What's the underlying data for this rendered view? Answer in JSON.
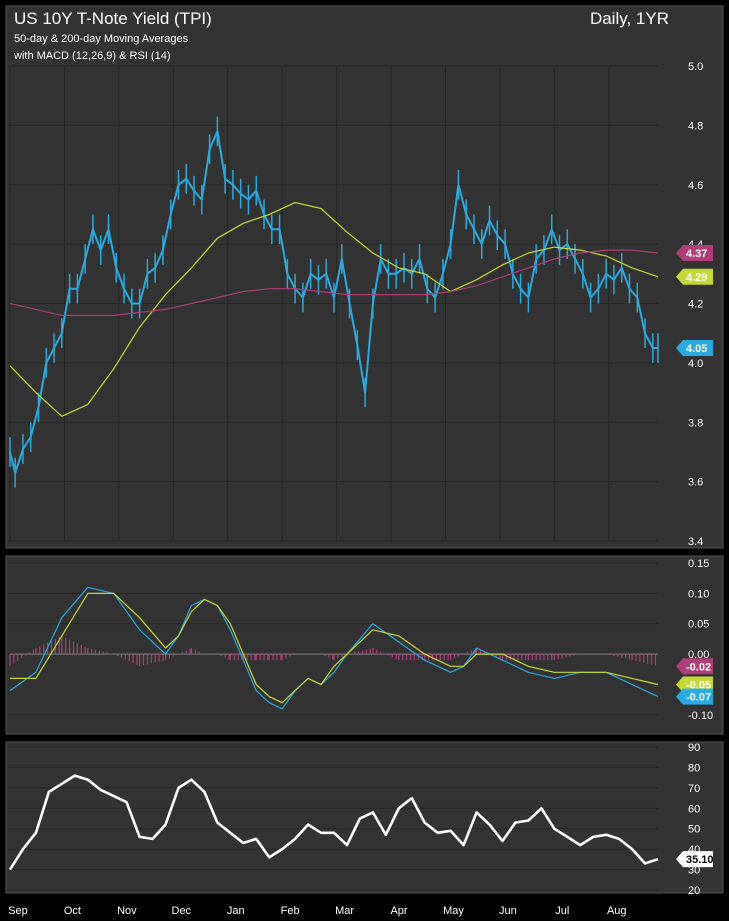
{
  "header": {
    "title": "US 10Y T-Note Yield (TPI)",
    "subtitle1": "50-day & 200-day Moving Averages",
    "subtitle2": "with MACD (12,26,9) & RSI (14)",
    "timeframe": "Daily, 1YR"
  },
  "colors": {
    "background": "#333333",
    "border": "#000000",
    "grid": "#262626",
    "price": "#29aae1",
    "ma50": "#c5d936",
    "ma200": "#b03e7a",
    "macd": "#29aae1",
    "signal": "#c5d936",
    "histogram": "#b03e7a",
    "rsi": "#ffffff",
    "text": "#ffffff"
  },
  "chart_data": [
    {
      "type": "line",
      "panel": "price",
      "ylim": [
        3.4,
        5.0
      ],
      "y_ticks": [
        "3.4",
        "3.6",
        "3.8",
        "4.0",
        "4.2",
        "4.4",
        "4.6",
        "4.8",
        "5.0"
      ],
      "x_ticks": [
        "Sep",
        "Oct",
        "Nov",
        "Dec",
        "Jan",
        "Feb",
        "Mar",
        "Apr",
        "May",
        "Jun",
        "Jul",
        "Aug"
      ],
      "series": [
        {
          "key": "price",
          "x": [
            0,
            2,
            5,
            8,
            11,
            14,
            17,
            20,
            23,
            26,
            29,
            32,
            35,
            38,
            41,
            44,
            47,
            50,
            53,
            56,
            59,
            62,
            65,
            68,
            71,
            74,
            77,
            80,
            83,
            86,
            89,
            92,
            95,
            98,
            101,
            104,
            107,
            110,
            113,
            116,
            119,
            122,
            125,
            128,
            131,
            134,
            137,
            140,
            143,
            146,
            149,
            152,
            155,
            158,
            161,
            164,
            167,
            170,
            173,
            176,
            179,
            182,
            185,
            188,
            191,
            194,
            197,
            200,
            203,
            206,
            209,
            212,
            215,
            218,
            221,
            224,
            227,
            230,
            233,
            236,
            239,
            242,
            245,
            248,
            250
          ],
          "values": [
            3.7,
            3.63,
            3.71,
            3.75,
            3.85,
            4.0,
            4.05,
            4.1,
            4.25,
            4.25,
            4.35,
            4.45,
            4.38,
            4.45,
            4.32,
            4.25,
            4.2,
            4.2,
            4.3,
            4.32,
            4.38,
            4.5,
            4.6,
            4.62,
            4.58,
            4.55,
            4.72,
            4.78,
            4.62,
            4.6,
            4.57,
            4.55,
            4.58,
            4.5,
            4.45,
            4.45,
            4.3,
            4.25,
            4.22,
            4.3,
            4.28,
            4.3,
            4.22,
            4.35,
            4.2,
            4.06,
            3.9,
            4.2,
            4.35,
            4.3,
            4.3,
            4.32,
            4.3,
            4.35,
            4.25,
            4.22,
            4.3,
            4.4,
            4.6,
            4.5,
            4.45,
            4.4,
            4.48,
            4.43,
            4.4,
            4.3,
            4.25,
            4.22,
            4.35,
            4.38,
            4.45,
            4.38,
            4.4,
            4.35,
            4.3,
            4.22,
            4.25,
            4.3,
            4.28,
            4.32,
            4.25,
            4.22,
            4.1,
            4.05,
            4.05
          ]
        },
        {
          "key": "ma50",
          "name": "4.29",
          "x": [
            0,
            10,
            20,
            30,
            40,
            50,
            60,
            70,
            80,
            90,
            100,
            110,
            120,
            130,
            140,
            150,
            160,
            170,
            180,
            190,
            200,
            210,
            220,
            230,
            240,
            250
          ],
          "values": [
            3.99,
            3.9,
            3.82,
            3.86,
            3.98,
            4.12,
            4.23,
            4.32,
            4.42,
            4.47,
            4.5,
            4.54,
            4.52,
            4.44,
            4.37,
            4.32,
            4.3,
            4.24,
            4.28,
            4.33,
            4.37,
            4.39,
            4.38,
            4.36,
            4.32,
            4.29
          ]
        },
        {
          "key": "ma200",
          "name": "4.37",
          "x": [
            0,
            10,
            20,
            30,
            40,
            50,
            60,
            70,
            80,
            90,
            100,
            110,
            120,
            130,
            140,
            150,
            160,
            170,
            180,
            190,
            200,
            210,
            220,
            230,
            240,
            250
          ],
          "values": [
            4.2,
            4.18,
            4.16,
            4.16,
            4.16,
            4.17,
            4.18,
            4.2,
            4.22,
            4.24,
            4.25,
            4.25,
            4.24,
            4.23,
            4.23,
            4.23,
            4.23,
            4.24,
            4.26,
            4.29,
            4.32,
            4.35,
            4.37,
            4.38,
            4.38,
            4.37
          ]
        }
      ],
      "last_labels": [
        "4.37",
        "4.29",
        "4.05"
      ]
    },
    {
      "type": "line",
      "panel": "macd",
      "ylim": [
        -0.12,
        0.15
      ],
      "y_ticks": [
        "0.15",
        "0.10",
        "0.05",
        "0.00",
        "-0.10"
      ],
      "series": [
        {
          "key": "macd",
          "x": [
            0,
            10,
            20,
            30,
            40,
            50,
            60,
            65,
            70,
            75,
            80,
            85,
            90,
            95,
            100,
            105,
            110,
            115,
            120,
            125,
            130,
            140,
            150,
            160,
            170,
            175,
            180,
            190,
            200,
            210,
            220,
            230,
            240,
            250
          ],
          "values": [
            -0.06,
            -0.03,
            0.06,
            0.11,
            0.1,
            0.04,
            0.0,
            0.03,
            0.08,
            0.09,
            0.08,
            0.04,
            -0.01,
            -0.06,
            -0.08,
            -0.09,
            -0.06,
            -0.04,
            -0.05,
            -0.03,
            0.0,
            0.05,
            0.02,
            -0.01,
            -0.03,
            -0.02,
            0.01,
            -0.01,
            -0.03,
            -0.04,
            -0.03,
            -0.03,
            -0.05,
            -0.07
          ]
        },
        {
          "key": "signal",
          "x": [
            0,
            10,
            20,
            30,
            40,
            50,
            60,
            65,
            70,
            75,
            80,
            85,
            90,
            95,
            100,
            105,
            110,
            115,
            120,
            125,
            130,
            140,
            150,
            160,
            170,
            175,
            180,
            190,
            200,
            210,
            220,
            230,
            240,
            250
          ],
          "values": [
            -0.04,
            -0.04,
            0.03,
            0.1,
            0.1,
            0.06,
            0.01,
            0.03,
            0.07,
            0.09,
            0.08,
            0.05,
            0.0,
            -0.05,
            -0.07,
            -0.08,
            -0.06,
            -0.04,
            -0.05,
            -0.02,
            0.0,
            0.04,
            0.03,
            0.0,
            -0.02,
            -0.02,
            0.0,
            0.0,
            -0.02,
            -0.03,
            -0.03,
            -0.03,
            -0.04,
            -0.05
          ]
        }
      ],
      "histogram": {
        "key": "histogram",
        "x": [
          0,
          10,
          20,
          30,
          40,
          50,
          60,
          65,
          70,
          75,
          80,
          85,
          90,
          95,
          100,
          105,
          110,
          115,
          120,
          125,
          130,
          140,
          150,
          160,
          170,
          175,
          180,
          190,
          200,
          210,
          220,
          230,
          240,
          250
        ],
        "values": [
          -0.02,
          0.01,
          0.03,
          0.01,
          0.0,
          -0.02,
          -0.01,
          0.0,
          0.01,
          0.0,
          0.0,
          -0.01,
          -0.01,
          -0.01,
          -0.01,
          -0.01,
          0.0,
          0.0,
          0.0,
          -0.01,
          0.0,
          0.01,
          -0.01,
          -0.01,
          -0.01,
          0.0,
          0.01,
          -0.01,
          -0.01,
          -0.01,
          0.0,
          0.0,
          -0.01,
          -0.02
        ]
      },
      "last_labels": [
        "-0.02",
        "-0.05",
        "-0.07"
      ]
    },
    {
      "type": "line",
      "panel": "rsi",
      "ylim": [
        20,
        90
      ],
      "y_ticks": [
        "90",
        "80",
        "70",
        "60",
        "50",
        "40",
        "30",
        "20"
      ],
      "series": [
        {
          "key": "rsi",
          "x": [
            0,
            5,
            10,
            15,
            20,
            25,
            30,
            35,
            40,
            45,
            50,
            55,
            60,
            65,
            70,
            75,
            80,
            85,
            90,
            95,
            100,
            105,
            110,
            115,
            120,
            125,
            130,
            135,
            140,
            145,
            150,
            155,
            160,
            165,
            170,
            175,
            180,
            185,
            190,
            195,
            200,
            205,
            210,
            215,
            220,
            225,
            230,
            235,
            240,
            245,
            250
          ],
          "values": [
            30,
            40,
            48,
            68,
            72,
            76,
            74,
            69,
            66,
            63,
            46,
            45,
            52,
            70,
            74,
            68,
            53,
            48,
            43,
            45,
            36,
            40,
            45,
            52,
            48,
            48,
            42,
            55,
            58,
            47,
            60,
            65,
            53,
            48,
            49,
            42,
            58,
            52,
            44,
            53,
            54,
            60,
            50,
            46,
            42,
            46,
            47,
            45,
            40,
            33,
            35.1
          ]
        }
      ],
      "last_labels": [
        "35.10"
      ]
    }
  ]
}
